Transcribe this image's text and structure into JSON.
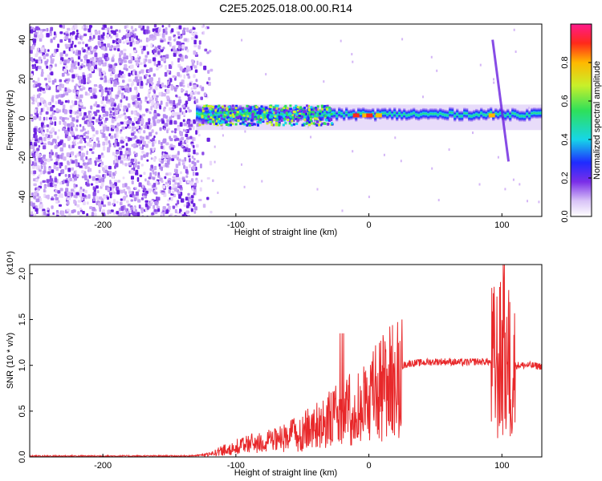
{
  "title": "C2E5.2025.018.00.00.R14",
  "colors": {
    "line": "#e8282a",
    "axis": "#000000"
  },
  "chart_data": [
    {
      "type": "heatmap",
      "xlabel": "Height of straight line (km)",
      "ylabel": "Frequency (Hz)",
      "xlim": [
        -255,
        130
      ],
      "ylim": [
        -50,
        48
      ],
      "xticks": [
        -200,
        -100,
        0,
        100
      ],
      "yticks": [
        -40,
        -20,
        0,
        20,
        40
      ],
      "colorbar": {
        "label": "Normalized spectral amplitude",
        "range": [
          0,
          1
        ],
        "ticks": [
          "0.0",
          "0.2",
          "0.4",
          "0.6",
          "0.8"
        ]
      }
    },
    {
      "type": "line",
      "xlabel": "Height of straight line (km)",
      "ylabel": "SNR (10 * v/v)",
      "multiplier": "(x10⁴)",
      "xlim": [
        -255,
        130
      ],
      "ylim": [
        0,
        2.1
      ],
      "xticks": [
        -200,
        -100,
        0,
        100
      ],
      "yticks": [
        "0.0",
        "0.5",
        "1.0",
        "1.5",
        "2.0"
      ],
      "series": [
        {
          "x": [
            -255,
            -240,
            -220,
            -200,
            -180,
            -160,
            -140,
            -130,
            -120,
            -110,
            -100,
            -90,
            -80,
            -70,
            -60,
            -50,
            -40,
            -30,
            -20,
            -10,
            0,
            10,
            20,
            30,
            40,
            50,
            60,
            70,
            80,
            90,
            95,
            100,
            105,
            110,
            120,
            130
          ],
          "values": [
            0.01,
            0.01,
            0.01,
            0.01,
            0.01,
            0.01,
            0.01,
            0.015,
            0.03,
            0.08,
            0.12,
            0.16,
            0.18,
            0.2,
            0.25,
            0.3,
            0.38,
            0.45,
            0.55,
            0.6,
            0.7,
            0.85,
            0.97,
            1.02,
            1.03,
            1.04,
            1.04,
            1.03,
            1.04,
            1.04,
            1.0,
            1.05,
            1.0,
            1.0,
            1.0,
            0.99
          ]
        }
      ]
    }
  ]
}
